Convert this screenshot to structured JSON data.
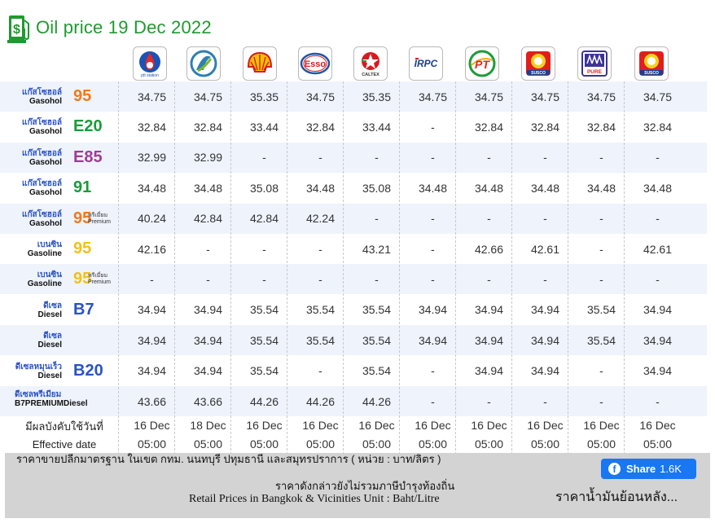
{
  "title": "Oil price 19 Dec 2022",
  "brands": [
    {
      "name": "ptt-logo",
      "text": "ptt station",
      "color": "#1b53b5"
    },
    {
      "name": "bangchak-logo",
      "text": "",
      "color": "#2f7fb3"
    },
    {
      "name": "shell-logo",
      "text": "",
      "color": "#f4c000"
    },
    {
      "name": "esso-logo",
      "text": "Esso",
      "color": "#d71920"
    },
    {
      "name": "caltex-logo",
      "text": "CALTEX",
      "color": "#d71920"
    },
    {
      "name": "irpc-logo",
      "text": "IRPC",
      "color": "#1d3f8f"
    },
    {
      "name": "pt-logo",
      "text": "PT",
      "color": "#e2261c"
    },
    {
      "name": "susco-logo",
      "text": "SUSCO",
      "color": "#e21d1d"
    },
    {
      "name": "pure-logo",
      "text": "PURE",
      "color": "#3d3397"
    },
    {
      "name": "susco-logo-2",
      "text": "SUSCO",
      "color": "#e21d1d"
    }
  ],
  "fuels": [
    {
      "th": "แก๊สโซฮอล์",
      "en": "Gasohol",
      "code": "95",
      "code_color": "#f07a1c",
      "premium": "",
      "values": [
        "34.75",
        "34.75",
        "35.35",
        "34.75",
        "35.35",
        "34.75",
        "34.75",
        "34.75",
        "34.75",
        "34.75"
      ]
    },
    {
      "th": "แก๊สโซฮอล์",
      "en": "Gasohol",
      "code": "E20",
      "code_color": "#1a9b3a",
      "premium": "",
      "values": [
        "32.84",
        "32.84",
        "33.44",
        "32.84",
        "33.44",
        "-",
        "32.84",
        "32.84",
        "32.84",
        "32.84"
      ]
    },
    {
      "th": "แก๊สโซฮอล์",
      "en": "Gasohol",
      "code": "E85",
      "code_color": "#a23a96",
      "premium": "",
      "values": [
        "32.99",
        "32.99",
        "-",
        "-",
        "-",
        "-",
        "-",
        "-",
        "-",
        "-"
      ]
    },
    {
      "th": "แก๊สโซฮอล์",
      "en": "Gasohol",
      "code": "91",
      "code_color": "#1a9b3a",
      "premium": "",
      "values": [
        "34.48",
        "34.48",
        "35.08",
        "34.48",
        "35.08",
        "34.48",
        "34.48",
        "34.48",
        "34.48",
        "34.48"
      ]
    },
    {
      "th": "แก๊สโซฮอล์",
      "en": "Gasohol",
      "code": "95",
      "code_color": "#f07a1c",
      "premium": "พรีเมี่ยม Premium",
      "values": [
        "40.24",
        "42.84",
        "42.84",
        "42.24",
        "-",
        "-",
        "-",
        "-",
        "-",
        "-"
      ]
    },
    {
      "th": "เบนซิน",
      "en": "Gasoline",
      "code": "95",
      "code_color": "#f2c21a",
      "premium": "",
      "values": [
        "42.16",
        "-",
        "-",
        "-",
        "43.21",
        "-",
        "42.66",
        "42.61",
        "-",
        "42.61"
      ]
    },
    {
      "th": "เบนซิน",
      "en": "Gasoline",
      "code": "95",
      "code_color": "#f2c21a",
      "premium": "พรีเมี่ยม Premium",
      "values": [
        "-",
        "-",
        "-",
        "-",
        "-",
        "-",
        "-",
        "-",
        "-",
        "-"
      ]
    },
    {
      "th": "ดีเซล",
      "en": "Diesel",
      "code": "B7",
      "code_color": "#2a52c4",
      "premium": "",
      "values": [
        "34.94",
        "34.94",
        "35.54",
        "35.54",
        "35.54",
        "34.94",
        "34.94",
        "34.94",
        "35.54",
        "34.94"
      ]
    },
    {
      "th": "ดีเซล",
      "en": "Diesel",
      "code": "",
      "code_color": "#2a52c4",
      "premium": "",
      "values": [
        "34.94",
        "34.94",
        "35.54",
        "35.54",
        "35.54",
        "34.94",
        "34.94",
        "34.94",
        "35.54",
        "34.94"
      ]
    },
    {
      "th": "ดีเซลหมุนเร็ว",
      "en": "Diesel",
      "code": "B20",
      "code_color": "#2a52c4",
      "premium": "",
      "values": [
        "34.94",
        "34.94",
        "35.54",
        "-",
        "35.54",
        "-",
        "34.94",
        "34.94",
        "-",
        "34.94"
      ]
    },
    {
      "th": "ดีเซลพรีเมียม",
      "en": "B7PREMIUMDiesel",
      "code": "",
      "code_color": "#2a52c4",
      "premium": "",
      "values": [
        "43.66",
        "43.66",
        "44.26",
        "44.26",
        "44.26",
        "-",
        "-",
        "-",
        "-",
        "-"
      ]
    }
  ],
  "effective": {
    "label_th": "มีผลบังคับใช้วันที่",
    "label_en": "Effective date",
    "dates": [
      "16 Dec",
      "18 Dec",
      "16 Dec",
      "16 Dec",
      "16 Dec",
      "16 Dec",
      "16 Dec",
      "16 Dec",
      "16 Dec",
      "16 Dec"
    ],
    "times": [
      "05:00",
      "05:00",
      "05:00",
      "05:00",
      "05:00",
      "05:00",
      "05:00",
      "05:00",
      "05:00",
      "05:00"
    ]
  },
  "footer": {
    "line1": "ราคาขายปลีกมาตรฐาน ในเขต กทม. นนทบุรี ปทุมธานี และสมุทรปราการ ( หน่วย : บาท/ลิตร )",
    "line2": "ราคาดังกล่าวยังไม่รวมภาษีบำรุงท้องถิ่น",
    "line3": "Retail Prices in Bangkok & Vicinities Unit : Baht/Litre",
    "share_label": "Share",
    "share_count": "1.6K",
    "history_link": "ราคาน้ำมันย้อนหลัง..."
  }
}
